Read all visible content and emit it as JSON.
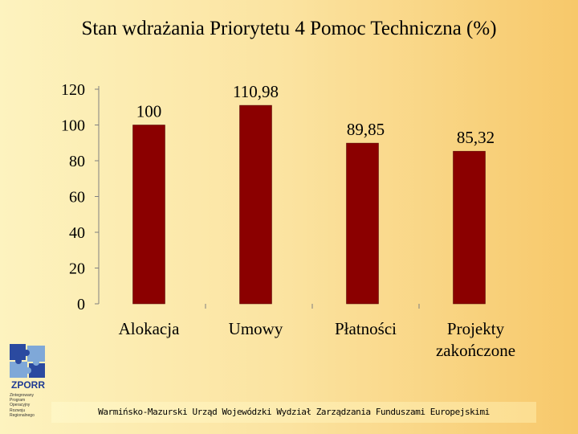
{
  "chart_data": {
    "type": "bar",
    "title": "Stan wdrażania  Priorytetu 4 Pomoc Techniczna (%)",
    "categories": [
      "Alokacja",
      "Umowy",
      "Płatności",
      "Projekty zakończone"
    ],
    "values": [
      100,
      110.98,
      89.85,
      85.32
    ],
    "value_labels": [
      "100",
      "110,98",
      "89,85",
      "85,32"
    ],
    "ylim": [
      0,
      120
    ],
    "yticks": [
      "0",
      "20",
      "40",
      "60",
      "80",
      "100",
      "120"
    ],
    "bar_color": "#8b0000",
    "grid": false
  },
  "logo": {
    "name": "ZPORR",
    "subtext": [
      "Zintegrowany",
      "Program",
      "Operacyjny",
      "Rozwoju",
      "Regionalnego"
    ]
  },
  "footer": {
    "text": "Warmińsko-Mazurski Urząd Wojewódzki Wydział Zarządzania Funduszami Europejskimi"
  }
}
